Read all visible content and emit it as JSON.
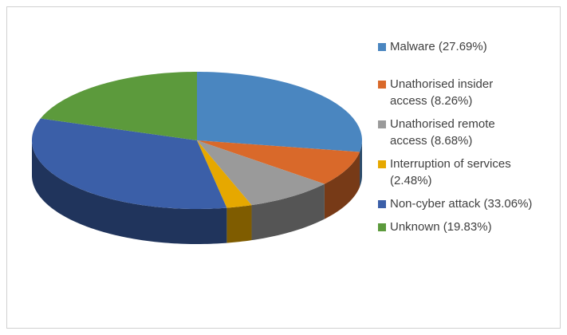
{
  "chart_data": {
    "type": "pie3d",
    "categories": [
      "Malware (27.69%)",
      "Unathorised insider access (8.26%)",
      "Unathorised remote access (8.68%)",
      "Interruption of services (2.48%)",
      "Non-cyber attack (33.06%)",
      "Unknown (19.83%)"
    ],
    "values": [
      27.69,
      8.26,
      8.68,
      2.48,
      33.06,
      19.83
    ],
    "colors": [
      "#4a86c0",
      "#d9692a",
      "#9a9a9a",
      "#e6a800",
      "#3b5fa8",
      "#5c9a3c"
    ],
    "legend": "right"
  }
}
